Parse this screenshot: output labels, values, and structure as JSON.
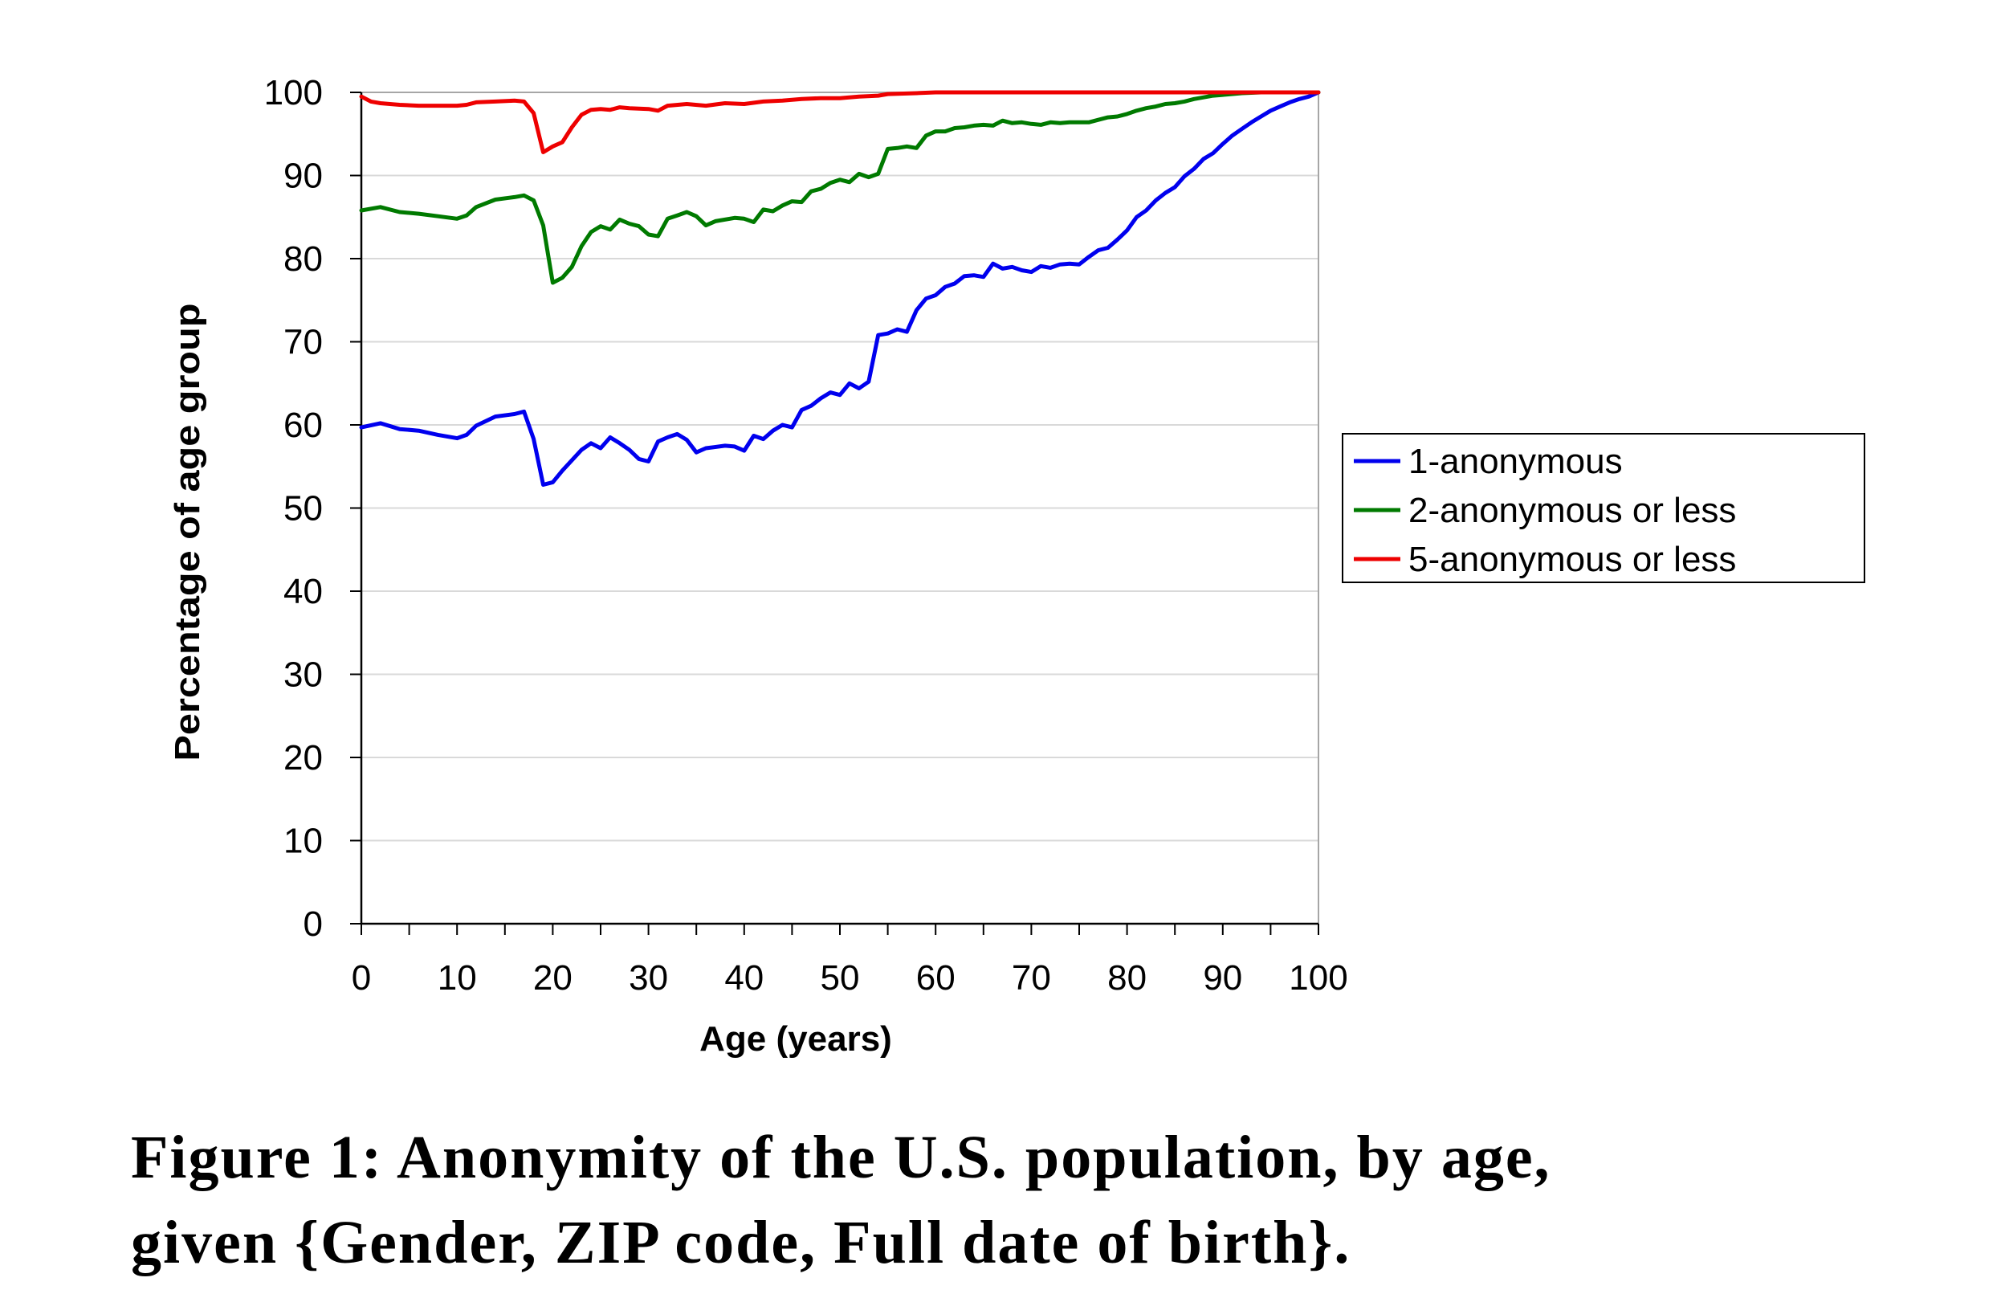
{
  "chart_data": {
    "type": "line",
    "title": "",
    "xlabel": "Age (years)",
    "ylabel": "Percentage of age group",
    "xlim": [
      0,
      100
    ],
    "ylim": [
      0,
      100
    ],
    "x_ticks": [
      "0",
      "10",
      "20",
      "30",
      "40",
      "50",
      "60",
      "70",
      "80",
      "90",
      "100"
    ],
    "y_ticks": [
      "0",
      "10",
      "20",
      "30",
      "40",
      "50",
      "60",
      "70",
      "80",
      "90",
      "100"
    ],
    "grid": "horizontal",
    "legend_position": "right",
    "series": [
      {
        "name": "1-anonymous",
        "color": "#0000ee",
        "points": [
          [
            0,
            59.7
          ],
          [
            2,
            60.2
          ],
          [
            4,
            59.5
          ],
          [
            6,
            59.3
          ],
          [
            8,
            58.8
          ],
          [
            10,
            58.4
          ],
          [
            11,
            58.8
          ],
          [
            12,
            59.9
          ],
          [
            14,
            61.0
          ],
          [
            16,
            61.3
          ],
          [
            17,
            61.6
          ],
          [
            18,
            58.3
          ],
          [
            19,
            52.8
          ],
          [
            20,
            53.1
          ],
          [
            21,
            54.5
          ],
          [
            23,
            57.0
          ],
          [
            24,
            57.8
          ],
          [
            25,
            57.2
          ],
          [
            26,
            58.5
          ],
          [
            27,
            57.8
          ],
          [
            28,
            57.0
          ],
          [
            29,
            55.9
          ],
          [
            30,
            55.6
          ],
          [
            31,
            58.0
          ],
          [
            32,
            58.5
          ],
          [
            33,
            58.9
          ],
          [
            34,
            58.2
          ],
          [
            35,
            56.7
          ],
          [
            36,
            57.2
          ],
          [
            38,
            57.5
          ],
          [
            39,
            57.4
          ],
          [
            40,
            56.9
          ],
          [
            41,
            58.7
          ],
          [
            42,
            58.3
          ],
          [
            43,
            59.3
          ],
          [
            44,
            60.0
          ],
          [
            45,
            59.7
          ],
          [
            46,
            61.8
          ],
          [
            47,
            62.3
          ],
          [
            48,
            63.2
          ],
          [
            49,
            63.9
          ],
          [
            50,
            63.6
          ],
          [
            51,
            65.0
          ],
          [
            52,
            64.4
          ],
          [
            53,
            65.2
          ],
          [
            54,
            70.8
          ],
          [
            55,
            71.0
          ],
          [
            56,
            71.5
          ],
          [
            57,
            71.2
          ],
          [
            58,
            73.8
          ],
          [
            59,
            75.2
          ],
          [
            60,
            75.6
          ],
          [
            61,
            76.6
          ],
          [
            62,
            77.0
          ],
          [
            63,
            77.9
          ],
          [
            64,
            78.0
          ],
          [
            65,
            77.8
          ],
          [
            66,
            79.4
          ],
          [
            67,
            78.8
          ],
          [
            68,
            79.0
          ],
          [
            69,
            78.6
          ],
          [
            70,
            78.4
          ],
          [
            71,
            79.1
          ],
          [
            72,
            78.9
          ],
          [
            73,
            79.3
          ],
          [
            74,
            79.4
          ],
          [
            75,
            79.3
          ],
          [
            76,
            80.2
          ],
          [
            77,
            81.0
          ],
          [
            78,
            81.3
          ],
          [
            79,
            82.3
          ],
          [
            80,
            83.4
          ],
          [
            81,
            85.0
          ],
          [
            82,
            85.8
          ],
          [
            83,
            87.0
          ],
          [
            84,
            87.9
          ],
          [
            85,
            88.6
          ],
          [
            86,
            89.9
          ],
          [
            87,
            90.8
          ],
          [
            88,
            92.0
          ],
          [
            89,
            92.7
          ],
          [
            90,
            93.8
          ],
          [
            91,
            94.8
          ],
          [
            92,
            95.6
          ],
          [
            93,
            96.4
          ],
          [
            94,
            97.1
          ],
          [
            95,
            97.8
          ],
          [
            96,
            98.3
          ],
          [
            97,
            98.8
          ],
          [
            98,
            99.2
          ],
          [
            99,
            99.5
          ],
          [
            100,
            100
          ]
        ]
      },
      {
        "name": "2-anonymous or less",
        "color": "#007a00",
        "points": [
          [
            0,
            85.8
          ],
          [
            2,
            86.2
          ],
          [
            4,
            85.6
          ],
          [
            6,
            85.4
          ],
          [
            8,
            85.1
          ],
          [
            10,
            84.8
          ],
          [
            11,
            85.2
          ],
          [
            12,
            86.2
          ],
          [
            14,
            87.1
          ],
          [
            16,
            87.4
          ],
          [
            17,
            87.6
          ],
          [
            18,
            87.0
          ],
          [
            19,
            84.0
          ],
          [
            20,
            77.1
          ],
          [
            21,
            77.7
          ],
          [
            22,
            79.0
          ],
          [
            23,
            81.5
          ],
          [
            24,
            83.2
          ],
          [
            25,
            83.9
          ],
          [
            26,
            83.5
          ],
          [
            27,
            84.7
          ],
          [
            28,
            84.2
          ],
          [
            29,
            83.9
          ],
          [
            30,
            82.9
          ],
          [
            31,
            82.7
          ],
          [
            32,
            84.8
          ],
          [
            33,
            85.2
          ],
          [
            34,
            85.6
          ],
          [
            35,
            85.1
          ],
          [
            36,
            84.0
          ],
          [
            37,
            84.5
          ],
          [
            39,
            84.9
          ],
          [
            40,
            84.8
          ],
          [
            41,
            84.4
          ],
          [
            42,
            85.9
          ],
          [
            43,
            85.7
          ],
          [
            44,
            86.4
          ],
          [
            45,
            86.9
          ],
          [
            46,
            86.8
          ],
          [
            47,
            88.1
          ],
          [
            48,
            88.4
          ],
          [
            49,
            89.1
          ],
          [
            50,
            89.5
          ],
          [
            51,
            89.2
          ],
          [
            52,
            90.2
          ],
          [
            53,
            89.8
          ],
          [
            54,
            90.2
          ],
          [
            55,
            93.2
          ],
          [
            56,
            93.3
          ],
          [
            57,
            93.5
          ],
          [
            58,
            93.3
          ],
          [
            59,
            94.8
          ],
          [
            60,
            95.3
          ],
          [
            61,
            95.3
          ],
          [
            62,
            95.7
          ],
          [
            63,
            95.8
          ],
          [
            64,
            96.0
          ],
          [
            65,
            96.1
          ],
          [
            66,
            96.0
          ],
          [
            67,
            96.6
          ],
          [
            68,
            96.3
          ],
          [
            69,
            96.4
          ],
          [
            70,
            96.2
          ],
          [
            71,
            96.1
          ],
          [
            72,
            96.4
          ],
          [
            73,
            96.3
          ],
          [
            74,
            96.4
          ],
          [
            75,
            96.4
          ],
          [
            76,
            96.4
          ],
          [
            77,
            96.7
          ],
          [
            78,
            97.0
          ],
          [
            79,
            97.1
          ],
          [
            80,
            97.4
          ],
          [
            81,
            97.8
          ],
          [
            82,
            98.1
          ],
          [
            83,
            98.3
          ],
          [
            84,
            98.6
          ],
          [
            85,
            98.7
          ],
          [
            86,
            98.9
          ],
          [
            87,
            99.2
          ],
          [
            88,
            99.4
          ],
          [
            89,
            99.6
          ],
          [
            90,
            99.7
          ],
          [
            92,
            99.9
          ],
          [
            94,
            100
          ],
          [
            100,
            100
          ]
        ]
      },
      {
        "name": "5-anonymous or less",
        "color": "#ee0000",
        "points": [
          [
            0,
            99.5
          ],
          [
            1,
            98.9
          ],
          [
            2,
            98.7
          ],
          [
            4,
            98.5
          ],
          [
            6,
            98.4
          ],
          [
            8,
            98.4
          ],
          [
            10,
            98.4
          ],
          [
            11,
            98.5
          ],
          [
            12,
            98.8
          ],
          [
            14,
            98.9
          ],
          [
            16,
            99.0
          ],
          [
            17,
            98.9
          ],
          [
            18,
            97.5
          ],
          [
            19,
            92.8
          ],
          [
            20,
            93.5
          ],
          [
            21,
            94.0
          ],
          [
            22,
            95.8
          ],
          [
            23,
            97.3
          ],
          [
            24,
            97.9
          ],
          [
            25,
            98.0
          ],
          [
            26,
            97.9
          ],
          [
            27,
            98.2
          ],
          [
            28,
            98.1
          ],
          [
            30,
            98.0
          ],
          [
            31,
            97.8
          ],
          [
            32,
            98.4
          ],
          [
            34,
            98.6
          ],
          [
            36,
            98.4
          ],
          [
            38,
            98.7
          ],
          [
            40,
            98.6
          ],
          [
            42,
            98.9
          ],
          [
            44,
            99.0
          ],
          [
            46,
            99.2
          ],
          [
            48,
            99.3
          ],
          [
            50,
            99.3
          ],
          [
            52,
            99.5
          ],
          [
            54,
            99.6
          ],
          [
            55,
            99.8
          ],
          [
            58,
            99.9
          ],
          [
            60,
            100
          ],
          [
            100,
            100
          ]
        ]
      }
    ]
  },
  "caption": {
    "line1": "Figure 1:  Anonymity of the U.S. population, by age,",
    "line2": "given {Gender, ZIP code, Full date of birth}."
  }
}
